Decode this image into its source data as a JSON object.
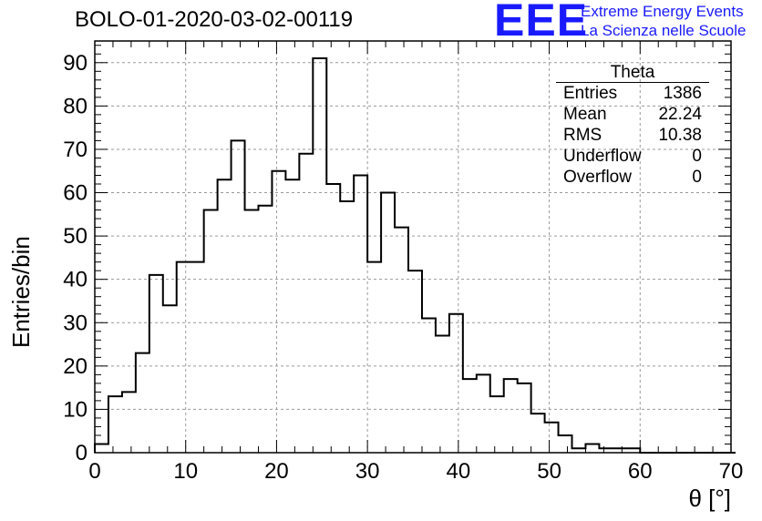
{
  "title": "BOLO-01-2020-03-02-00119",
  "logo": {
    "mark": "EEE",
    "line1": "Extreme Energy Events",
    "line2": "La Scienza nelle Scuole"
  },
  "stats": {
    "name": "Theta",
    "rows": [
      {
        "label": "Entries",
        "value": "1386"
      },
      {
        "label": "Mean",
        "value": "22.24"
      },
      {
        "label": "RMS",
        "value": "10.38"
      },
      {
        "label": "Underflow",
        "value": "0"
      },
      {
        "label": "Overflow",
        "value": "0"
      }
    ]
  },
  "chart_data": {
    "type": "bar",
    "title": "BOLO-01-2020-03-02-00119",
    "xlabel": "θ [°]",
    "ylabel": "Entries/bin",
    "xlim": [
      0,
      70
    ],
    "ylim": [
      0,
      95
    ],
    "xticks": [
      0,
      10,
      20,
      30,
      40,
      50,
      60,
      70
    ],
    "yticks": [
      0,
      10,
      20,
      30,
      40,
      50,
      60,
      70,
      80,
      90
    ],
    "grid": true,
    "bin_width": 1.5,
    "bin_start": 0,
    "values": [
      2,
      13,
      14,
      23,
      41,
      34,
      44,
      44,
      56,
      63,
      72,
      56,
      57,
      65,
      63,
      69,
      91,
      62,
      58,
      64,
      44,
      60,
      52,
      42,
      31,
      27,
      32,
      17,
      18,
      13,
      17,
      16,
      9,
      7,
      4,
      1,
      2,
      1,
      1,
      1,
      0,
      0,
      0,
      0,
      0,
      0,
      0
    ]
  }
}
